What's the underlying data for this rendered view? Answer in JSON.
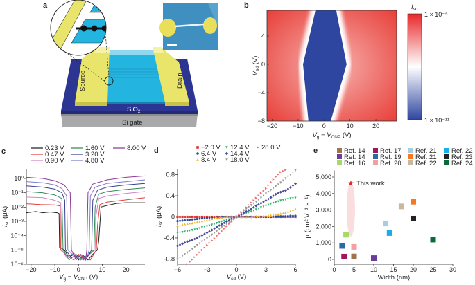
{
  "panel_labels": {
    "a": "a",
    "b": "b",
    "c": "c",
    "d": "d",
    "e": "e"
  },
  "schematic": {
    "source_label": "Source",
    "drain_label": "Drain",
    "oxide_label": [
      "SiO",
      "2"
    ],
    "gate_label": "Si gate",
    "colors": {
      "electrode": "#e9e46a",
      "channel": "#23b4e0",
      "oxide": "#2c3592",
      "gate": "#a9a9ab",
      "sem": "#3f8fc0"
    }
  },
  "chart_data": [
    {
      "id": "b",
      "type": "heatmap",
      "xlabel": [
        "V",
        "g",
        " − V",
        "CNP",
        " (V)"
      ],
      "ylabel": [
        "V",
        "sd",
        " (V)"
      ],
      "xlim": [
        -22,
        28
      ],
      "ylim": [
        -8,
        7.6
      ],
      "xticks": [
        -20,
        -10,
        0,
        10,
        20
      ],
      "xtick_labels": [
        "−20",
        "−10",
        "0",
        "10",
        "20"
      ],
      "yticks": [
        4,
        0,
        -4,
        -8
      ],
      "ytick_labels": [
        "4",
        "0",
        "−4",
        "−8"
      ],
      "colorbar": {
        "title": [
          "I",
          "sd"
        ],
        "max_label": "1 × 10⁻⁵",
        "min_label": "1 × 10⁻¹¹",
        "scale": "log",
        "colors": [
          "#e8282a",
          "#ffffff",
          "#2e46a0"
        ]
      },
      "low_current_region": [
        [
          -3.3,
          7.6
        ],
        [
          4.7,
          7.6
        ],
        [
          8.7,
          0
        ],
        [
          2.6,
          -8
        ],
        [
          -6,
          -8
        ],
        [
          -8.1,
          0
        ]
      ]
    },
    {
      "id": "c",
      "type": "line",
      "xlabel": [
        "V",
        "g",
        " − V",
        "CNP",
        " (V)"
      ],
      "ylabel": [
        "I",
        "sd",
        " (μA)"
      ],
      "xlim": [
        -22,
        28
      ],
      "ylim_log10": [
        -6,
        0.63
      ],
      "yscale": "log",
      "xticks": [
        -20,
        -10,
        0,
        10,
        20
      ],
      "xtick_labels": [
        "−20",
        "−10",
        "0",
        "10",
        "20"
      ],
      "yticks": [
        0,
        -1,
        -2,
        -3,
        -4,
        -5,
        -6
      ],
      "ytick_labels": [
        "10⁰",
        "10⁻¹",
        "10⁻²",
        "10⁻³",
        "10⁻⁴",
        "10⁻⁵",
        "10⁻⁶"
      ],
      "legend": "top",
      "series": [
        {
          "name": "0.23 V",
          "color": "#222222",
          "points": [
            [
              -22,
              0.004
            ],
            [
              -18,
              0.0048
            ],
            [
              -15,
              0.004
            ],
            [
              -12,
              0.0045
            ],
            [
              -9,
              0.004
            ],
            [
              -8.2,
              0.0035
            ],
            [
              -8,
              1.5e-05
            ],
            [
              -6,
              1e-05
            ],
            [
              -4,
              3e-06
            ],
            [
              -2,
              5e-06
            ],
            [
              0,
              2e-06
            ],
            [
              2,
              4e-06
            ],
            [
              4,
              2e-06
            ],
            [
              6,
              5e-06
            ],
            [
              8,
              1e-05
            ],
            [
              8.5,
              4e-05
            ],
            [
              9.5,
              0.01
            ],
            [
              12,
              0.013
            ],
            [
              16,
              0.018
            ],
            [
              20,
              0.02
            ],
            [
              28,
              0.02
            ]
          ]
        },
        {
          "name": "0.47 V",
          "color": "#e0413a",
          "points": [
            [
              -22,
              0.017
            ],
            [
              -16,
              0.015
            ],
            [
              -10,
              0.014
            ],
            [
              -7.8,
              0.012
            ],
            [
              -7.5,
              1e-05
            ],
            [
              -5,
              4e-06
            ],
            [
              -2,
              2e-06
            ],
            [
              0,
              5e-06
            ],
            [
              2,
              3e-06
            ],
            [
              5,
              2e-06
            ],
            [
              7.5,
              1e-05
            ],
            [
              8,
              0.0005
            ],
            [
              9,
              0.015
            ],
            [
              12,
              0.022
            ],
            [
              20,
              0.032
            ],
            [
              28,
              0.045
            ]
          ]
        },
        {
          "name": "0.90 V",
          "color": "#d184c6",
          "points": [
            [
              -22,
              0.05
            ],
            [
              -15,
              0.045
            ],
            [
              -10,
              0.03
            ],
            [
              -7.5,
              0.02
            ],
            [
              -7,
              1e-05
            ],
            [
              -5,
              3e-06
            ],
            [
              -2,
              6e-06
            ],
            [
              1,
              2e-06
            ],
            [
              4,
              4e-06
            ],
            [
              7,
              1e-05
            ],
            [
              7.3,
              0.002
            ],
            [
              8.5,
              0.04
            ],
            [
              12,
              0.06
            ],
            [
              20,
              0.09
            ],
            [
              28,
              0.12
            ]
          ]
        },
        {
          "name": "1.60 V",
          "color": "#2e8b57",
          "points": [
            [
              -22,
              0.12
            ],
            [
              -15,
              0.1
            ],
            [
              -10,
              0.07
            ],
            [
              -7,
              0.04
            ],
            [
              -6.5,
              1e-05
            ],
            [
              -4,
              2e-06
            ],
            [
              -1,
              5e-06
            ],
            [
              2,
              2e-06
            ],
            [
              5,
              6e-06
            ],
            [
              6.5,
              1e-05
            ],
            [
              7,
              0.01
            ],
            [
              8.5,
              0.08
            ],
            [
              12,
              0.12
            ],
            [
              20,
              0.17
            ],
            [
              28,
              0.22
            ]
          ]
        },
        {
          "name": "3.20 V",
          "color": "#3a3f8f",
          "points": [
            [
              -22,
              0.3
            ],
            [
              -15,
              0.25
            ],
            [
              -10,
              0.18
            ],
            [
              -7,
              0.1
            ],
            [
              -5.8,
              0.03
            ],
            [
              -5.5,
              1e-05
            ],
            [
              -3,
              3e-06
            ],
            [
              0,
              4e-06
            ],
            [
              3,
              2e-06
            ],
            [
              5.5,
              1e-05
            ],
            [
              6,
              0.03
            ],
            [
              8,
              0.15
            ],
            [
              12,
              0.25
            ],
            [
              20,
              0.35
            ],
            [
              28,
              0.45
            ]
          ]
        },
        {
          "name": "4.80 V",
          "color": "#7b7fc8",
          "points": [
            [
              -22,
              0.6
            ],
            [
              -15,
              0.5
            ],
            [
              -10,
              0.35
            ],
            [
              -7,
              0.2
            ],
            [
              -5,
              0.06
            ],
            [
              -4.5,
              1e-05
            ],
            [
              -2,
              4e-06
            ],
            [
              1,
              2e-06
            ],
            [
              4,
              5e-06
            ],
            [
              4.5,
              1e-05
            ],
            [
              5,
              0.06
            ],
            [
              7,
              0.25
            ],
            [
              12,
              0.45
            ],
            [
              20,
              0.6
            ],
            [
              28,
              0.8
            ]
          ]
        },
        {
          "name": "8.00 V",
          "color": "#8e3a96",
          "points": [
            [
              -22,
              1.2
            ],
            [
              -15,
              1.0
            ],
            [
              -10,
              0.7
            ],
            [
              -6,
              0.35
            ],
            [
              -3.5,
              0.1
            ],
            [
              -3,
              1e-05
            ],
            [
              -1,
              2e-06
            ],
            [
              1,
              5e-06
            ],
            [
              3,
              2e-06
            ],
            [
              3.5,
              1e-05
            ],
            [
              4,
              0.1
            ],
            [
              6,
              0.4
            ],
            [
              12,
              0.8
            ],
            [
              20,
              1.2
            ],
            [
              28,
              1.5
            ]
          ]
        }
      ]
    },
    {
      "id": "d",
      "type": "scatter",
      "xlabel": [
        "V",
        "sd",
        " (V)"
      ],
      "ylabel": [
        "I",
        "sd",
        " (μA)"
      ],
      "xlim": [
        -6,
        6
      ],
      "ylim": [
        -0.9,
        0.9
      ],
      "xticks": [
        -6,
        -3,
        0,
        3,
        6
      ],
      "xtick_labels": [
        "−6",
        "−3",
        "0",
        "3",
        "6"
      ],
      "yticks": [
        0.8,
        0.4,
        0,
        -0.4,
        -0.8
      ],
      "ytick_labels": [
        "0.8",
        "0.4",
        "0",
        "-0.4",
        "-0.8"
      ],
      "legend": "top",
      "x": [
        -6,
        -5.5,
        -5,
        -4.5,
        -4,
        -3.5,
        -3,
        -2.5,
        -2,
        -1.5,
        -1,
        -0.5,
        0,
        0.5,
        1,
        1.5,
        2,
        2.5,
        3,
        3.5,
        4,
        4.5,
        5,
        5.5,
        6
      ],
      "series": [
        {
          "name": "−2.0 V",
          "color": "#e0302a",
          "marker": "square",
          "values": [
            0,
            0,
            0,
            0,
            0,
            0,
            0,
            0,
            0,
            0,
            0,
            0,
            0,
            0,
            0,
            0,
            0,
            0,
            0,
            0,
            0,
            0,
            0,
            0,
            0
          ]
        },
        {
          "name": "6.4 V",
          "color": "#2d4a9a",
          "marker": "circle",
          "values": [
            -0.08,
            -0.07,
            -0.06,
            -0.05,
            -0.04,
            -0.03,
            -0.02,
            -0.01,
            -0.01,
            0,
            0,
            0,
            0,
            0,
            0,
            0,
            0,
            0,
            0,
            0,
            0.01,
            0.01,
            0.01,
            0.02,
            0.02
          ]
        },
        {
          "name": "8.4 V",
          "color": "#f0b429",
          "marker": "triangle-up",
          "values": [
            -0.17,
            -0.15,
            -0.13,
            -0.12,
            -0.1,
            -0.08,
            -0.06,
            -0.04,
            -0.02,
            -0.01,
            0,
            0,
            0,
            0,
            0,
            0,
            0.01,
            0.01,
            0.02,
            0.03,
            0.04,
            0.06,
            0.08,
            0.11,
            0.15
          ]
        },
        {
          "name": "12.4 V",
          "color": "#2db56b",
          "marker": "triangle-down",
          "values": [
            -0.31,
            -0.29,
            -0.27,
            -0.25,
            -0.23,
            -0.2,
            -0.18,
            -0.15,
            -0.12,
            -0.09,
            -0.06,
            -0.03,
            0,
            0.03,
            0.07,
            0.1,
            0.14,
            0.18,
            0.21,
            0.25,
            0.28,
            0.31,
            0.33,
            0.35,
            0.36
          ]
        },
        {
          "name": "14.4 V",
          "color": "#4a4a9a",
          "marker": "diamond",
          "values": [
            -0.55,
            -0.51,
            -0.47,
            -0.44,
            -0.4,
            -0.35,
            -0.3,
            -0.25,
            -0.19,
            -0.14,
            -0.09,
            -0.04,
            0,
            0.05,
            0.1,
            0.15,
            0.21,
            0.26,
            0.31,
            0.37,
            0.43,
            0.47,
            0.5,
            0.56,
            0.63
          ]
        },
        {
          "name": "18.0 V",
          "color": "#9a9a9a",
          "marker": "triangle-down",
          "values": [
            -0.81,
            -0.74,
            -0.68,
            -0.61,
            -0.54,
            -0.47,
            -0.41,
            -0.34,
            -0.27,
            -0.2,
            -0.14,
            -0.07,
            0,
            0.07,
            0.15,
            0.22,
            0.29,
            0.36,
            0.44,
            0.51,
            0.58,
            0.65,
            0.73,
            0.8,
            0.88
          ]
        },
        {
          "name": "28.0 V",
          "color": "#f06a6a",
          "marker": "triangle-right",
          "values": [
            null,
            null,
            -0.9,
            -0.81,
            -0.72,
            -0.63,
            -0.54,
            -0.45,
            -0.36,
            -0.27,
            -0.18,
            -0.09,
            0,
            0.09,
            0.18,
            0.27,
            0.36,
            0.45,
            0.54,
            0.66,
            0.76,
            0.85,
            0.89,
            null,
            null
          ]
        }
      ]
    },
    {
      "id": "e",
      "type": "scatter",
      "xlabel": [
        "Width (nm)"
      ],
      "ylabel": [
        "μ (cm² V⁻¹ s⁻¹)"
      ],
      "xlim": [
        0,
        30
      ],
      "ylim": [
        -200,
        5400
      ],
      "xticks": [
        0,
        5,
        10,
        15,
        20,
        25,
        30
      ],
      "xtick_labels": [
        "0",
        "5",
        "10",
        "15",
        "20",
        "25",
        "30"
      ],
      "yticks": [
        0,
        1000,
        2000,
        3000,
        4000,
        5000
      ],
      "ytick_labels": [
        "0",
        "1,000",
        "2,000",
        "3,000",
        "4,000",
        "5,000"
      ],
      "legend": "top",
      "series": [
        {
          "name": "Ref. 14",
          "color": "#a0734a",
          "x": 5,
          "y": 180
        },
        {
          "name": "Ref. 14",
          "color": "#6a3d9a",
          "x": 10,
          "y": 80
        },
        {
          "name": "Ref. 16",
          "color": "#a6d96a",
          "x": 3,
          "y": 1500
        },
        {
          "name": "Ref. 17",
          "color": "#a0185a",
          "x": 2.5,
          "y": 170
        },
        {
          "name": "Ref. 19",
          "color": "#2a6aa6",
          "x": 2,
          "y": 820
        },
        {
          "name": "Ref. 20",
          "color": "#f4a0a0",
          "x": 5,
          "y": 760
        },
        {
          "name": "Ref. 21",
          "color": "#a6cee3",
          "x": 13,
          "y": 2180
        },
        {
          "name": "Ref. 21",
          "color": "#f47920",
          "x": 20,
          "y": 3500
        },
        {
          "name": "Ref. 22",
          "color": "#c8b8a0",
          "x": 17,
          "y": 3220
        },
        {
          "name": "Ref. 22",
          "color": "#1aaee8",
          "x": 14,
          "y": 1600
        },
        {
          "name": "Ref. 23",
          "color": "#222222",
          "x": 20,
          "y": 2480
        },
        {
          "name": "Ref. 24",
          "color": "#0a6b3a",
          "x": 25,
          "y": 1200
        }
      ],
      "highlight": {
        "name": "This work",
        "color": "#e0262c",
        "x": 4.2,
        "y": 4620,
        "range": [
          1400,
          4700
        ]
      }
    }
  ]
}
